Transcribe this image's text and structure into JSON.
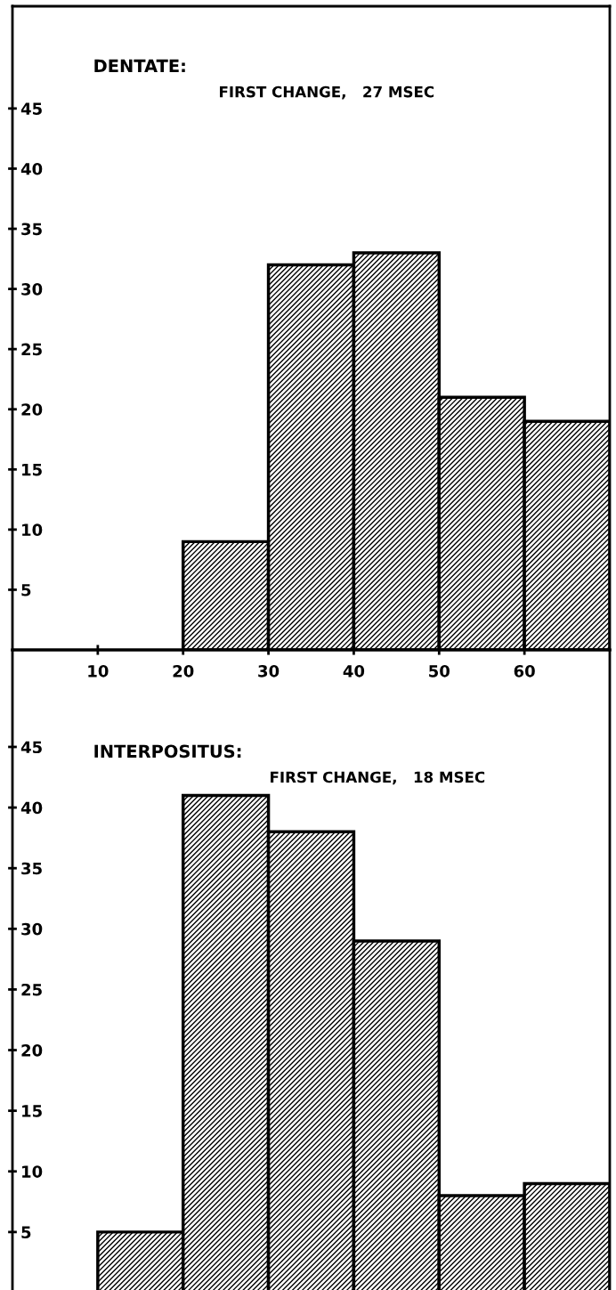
{
  "chart_data": [
    {
      "type": "histogram",
      "title": "DENTATE:",
      "subtitle": "FIRST CHANGE,   27 MSEC",
      "bins": [
        20,
        30,
        40,
        50,
        60,
        70
      ],
      "values": [
        9,
        32,
        33,
        21,
        19
      ],
      "color": "#000000",
      "xlim": [
        0,
        70
      ],
      "xticks": [
        10,
        20,
        30,
        40,
        50,
        60
      ],
      "ylim": [
        0,
        53.5
      ],
      "yticks": [
        5,
        10,
        15,
        20,
        25,
        30,
        35,
        40,
        45
      ],
      "grid": false,
      "legend": false
    },
    {
      "type": "histogram",
      "title": "INTERPOSITUS:",
      "subtitle": "FIRST CHANGE,   18 MSEC",
      "bins": [
        10,
        20,
        30,
        40,
        50,
        60,
        70
      ],
      "values": [
        5,
        41,
        38,
        29,
        8,
        9
      ],
      "color": "#000000",
      "xlim": [
        0,
        70
      ],
      "ylim": [
        0,
        53
      ],
      "yticks": [
        5,
        10,
        15,
        20,
        25,
        30,
        35,
        40,
        45
      ],
      "tick_labels": "y",
      "grid": false,
      "legend": false
    }
  ]
}
